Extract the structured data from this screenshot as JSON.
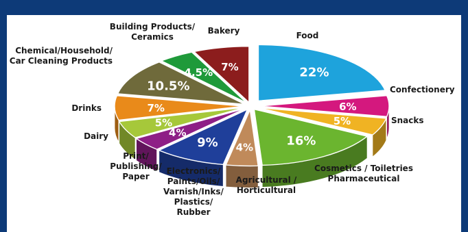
{
  "chart_data": {
    "type": "pie",
    "title": "",
    "slices": [
      {
        "label": "Food",
        "value": 22,
        "value_label": "22%",
        "color": "#1ea3dc"
      },
      {
        "label": "Confectionery",
        "value": 6,
        "value_label": "6%",
        "color": "#d4187e"
      },
      {
        "label": "Snacks",
        "value": 5,
        "value_label": "5%",
        "color": "#f0b323"
      },
      {
        "label": "Cosmetics / Toiletries Pharmaceutical",
        "value": 16,
        "value_label": "16%",
        "color": "#6bb52f"
      },
      {
        "label": "Agricultural / Horticultural",
        "value": 4,
        "value_label": "4%",
        "color": "#c08a5a"
      },
      {
        "label": "Electronics/ Paints/Oils/ Varnish/Inks/ Plastics/ Rubber",
        "value": 9,
        "value_label": "9%",
        "color": "#1f3f9a"
      },
      {
        "label": "Print/ Publishing/ Paper",
        "value": 4,
        "value_label": "4%",
        "color": "#8e1f86"
      },
      {
        "label": "Dairy",
        "value": 5,
        "value_label": "5%",
        "color": "#a6c83a"
      },
      {
        "label": "Drinks",
        "value": 7,
        "value_label": "7%",
        "color": "#e98a1a"
      },
      {
        "label": "Chemical/Household/ Car Cleaning Products",
        "value": 10.5,
        "value_label": "10.5%",
        "color": "#6f6a3b"
      },
      {
        "label": "Building Products/ Ceramics",
        "value": 4.5,
        "value_label": "4.5%",
        "color": "#1f9a3a"
      },
      {
        "label": "Bakery",
        "value": 7,
        "value_label": "7%",
        "color": "#8c1d1d"
      }
    ],
    "legend": "none"
  },
  "labels": {
    "food": [
      "Food"
    ],
    "confectionery": [
      "Confectionery"
    ],
    "snacks": [
      "Snacks"
    ],
    "cosmetics": [
      "Cosmetics / Toiletries",
      "Pharmaceutical"
    ],
    "agricultural": [
      "Agricultural /",
      "Horticultural"
    ],
    "electronics": [
      "Electronics/",
      "Paints/Oils/",
      "Varnish/Inks/",
      "Plastics/",
      "Rubber"
    ],
    "print": [
      "Print/",
      "Publishing/",
      "Paper"
    ],
    "dairy": [
      "Dairy"
    ],
    "drinks": [
      "Drinks"
    ],
    "chemical": [
      "Chemical/Household/",
      "Car Cleaning Products"
    ],
    "building": [
      "Building Products/",
      "Ceramics"
    ],
    "bakery": [
      "Bakery"
    ]
  }
}
